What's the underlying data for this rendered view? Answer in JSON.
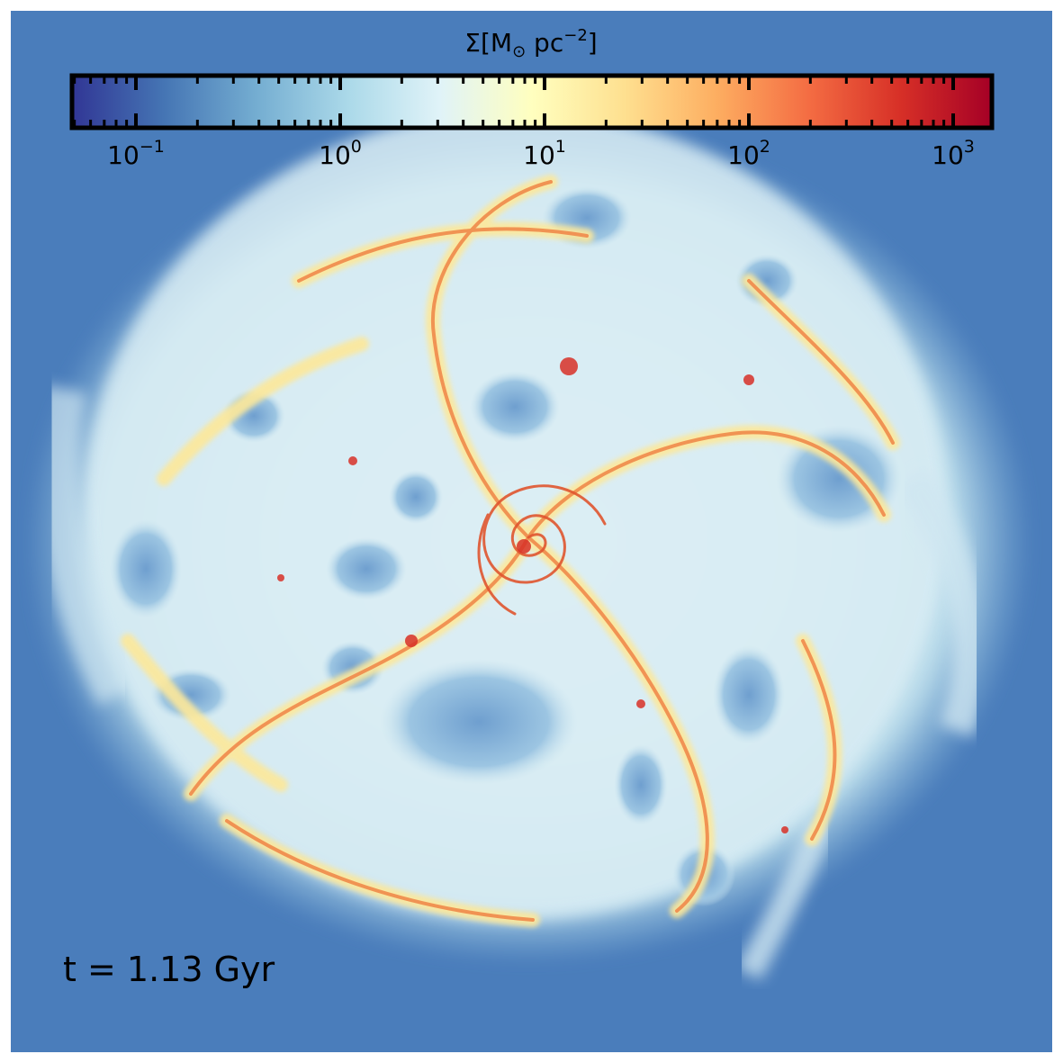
{
  "colorbar": {
    "title_symbol": "Σ",
    "title_unit_open": "[M",
    "title_unit_sub": "⊙",
    "title_unit_mid": " pc",
    "title_unit_exp": "−2",
    "title_unit_close": "]",
    "scale": "log",
    "colormap": [
      "#313695",
      "#4575b4",
      "#74add1",
      "#abd9e9",
      "#e0f3f8",
      "#ffffbf",
      "#fee090",
      "#fdae61",
      "#f46d43",
      "#d73027",
      "#a50026"
    ],
    "ticks": [
      {
        "base": "10",
        "exp": "−1"
      },
      {
        "base": "10",
        "exp": "0"
      },
      {
        "base": "10",
        "exp": "1"
      },
      {
        "base": "10",
        "exp": "2"
      },
      {
        "base": "10",
        "exp": "3"
      }
    ]
  },
  "time_label": "t = 1.13 Gyr",
  "colors": {
    "background": "#4a7dbb",
    "disk_low": "#d6eaf3",
    "filament": "#fde89a",
    "dense": "#e8622f"
  }
}
